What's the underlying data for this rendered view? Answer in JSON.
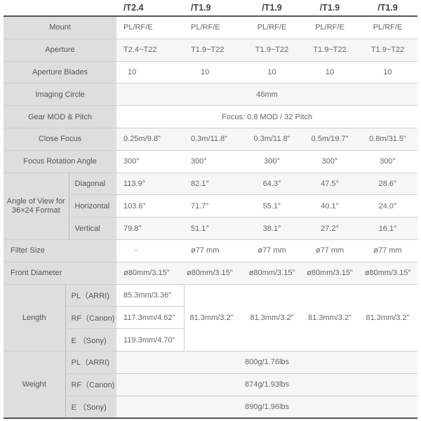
{
  "headers": [
    "/T2.4",
    "/T1.9",
    "/T1.9",
    "/T1.9",
    "/T1.9"
  ],
  "rows": {
    "mount": {
      "label": "Mount",
      "values": [
        "PL/RF/E",
        "PL/RF/E",
        "PL/RF/E",
        "PL/RF/E",
        "PL/RF/E"
      ]
    },
    "aperture": {
      "label": "Aperture",
      "values": [
        "T2.4~T22",
        "T1.9~T22",
        "T1.9~T22",
        "T1.9~T22",
        "T1.9~T22"
      ]
    },
    "blades": {
      "label": "Aperture Blades",
      "values": [
        "10",
        "10",
        "10",
        "10",
        "10"
      ]
    },
    "imaging": {
      "label": "Imaging Circle",
      "value": "46mm"
    },
    "gear": {
      "label": "Gear MOD & Pitch",
      "value": "Focus: 0.8 MOD / 32 Pitch"
    },
    "close_focus": {
      "label": "Close Focus",
      "values": [
        "0.25m/9.8\"",
        "0.3m/11.8\"",
        "0.3m/11.8\"",
        "0.5m/19.7\"",
        "0.8m/31.5\""
      ]
    },
    "rotation": {
      "label": "Focus Rotation Angle",
      "values": [
        "300°",
        "300°",
        "300°",
        "300°",
        "300°"
      ]
    },
    "angle_of_view": {
      "label": "Angle of View for 36×24 Format",
      "rows": [
        {
          "label": "Diagonal",
          "values": [
            "113.9°",
            "82.1°",
            "64.3°",
            "47.5°",
            "28.6°"
          ]
        },
        {
          "label": "Horizontal",
          "values": [
            "103.6°",
            "71.7°",
            "55.1°",
            "40.1°",
            "24.0°"
          ]
        },
        {
          "label": "Vertical",
          "values": [
            "79.8°",
            "51.1°",
            "38.1°",
            "27.2°",
            "16.1°"
          ]
        }
      ]
    },
    "filter": {
      "label": "Filter Size",
      "values": [
        "-",
        "ø77 mm",
        "ø77 mm",
        "ø77 mm",
        "ø77 mm"
      ]
    },
    "front": {
      "label": "Front Diameter",
      "values": [
        "ø80mm/3.15\"",
        "ø80mm/3.15\"",
        "ø80mm/3.15\"",
        "ø80mm/3.15\"",
        "ø80mm/3.15\""
      ]
    },
    "length": {
      "label": "Length",
      "rows": [
        {
          "label": "PL（ARRI)",
          "value": "85.3mm/3.36\""
        },
        {
          "label": "RF（Canon)",
          "value": "117.3mm/4.62\""
        },
        {
          "label": "E （Sony)",
          "value": "119.3mm/4.70\""
        }
      ],
      "others": [
        "81.3mm/3.2\"",
        "81.3mm/3.2\"",
        "81.3mm/3.2\"",
        "81.3mm/3.2\""
      ]
    },
    "weight": {
      "label": "Weight",
      "rows": [
        {
          "label": "PL（ARRI)",
          "value": "800g/1.76lbs"
        },
        {
          "label": "RF（Canon)",
          "value": "874g/1.93lbs"
        },
        {
          "label": "E （Sony)",
          "value": "890g/1.96lbs"
        }
      ]
    }
  }
}
